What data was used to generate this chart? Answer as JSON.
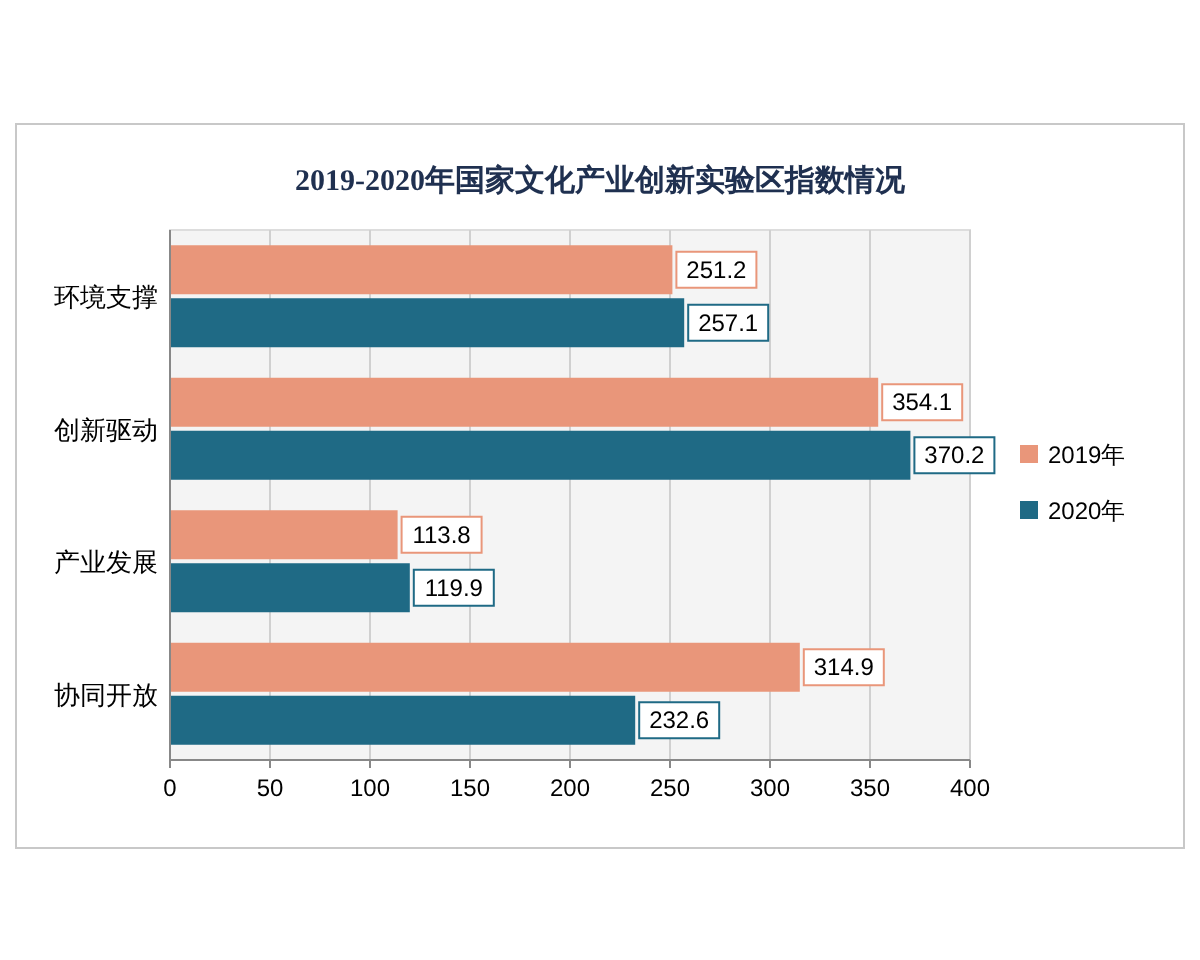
{
  "chart_data": {
    "type": "bar",
    "orientation": "horizontal",
    "title": "2019-2020年国家文化产业创新实验区指数情况",
    "categories": [
      "环境支撑",
      "创新驱动",
      "产业发展",
      "协同开放"
    ],
    "series": [
      {
        "name": "2019年",
        "color": "#e9967a",
        "values": [
          251.2,
          354.1,
          113.8,
          314.9
        ]
      },
      {
        "name": "2020年",
        "color": "#1f6a85",
        "values": [
          257.1,
          370.2,
          119.9,
          232.6
        ]
      }
    ],
    "xlim": [
      0,
      400
    ],
    "xticks": [
      0,
      50,
      100,
      150,
      200,
      250,
      300,
      350,
      400
    ],
    "grid": "x",
    "legend": "right",
    "data_labels": true
  }
}
